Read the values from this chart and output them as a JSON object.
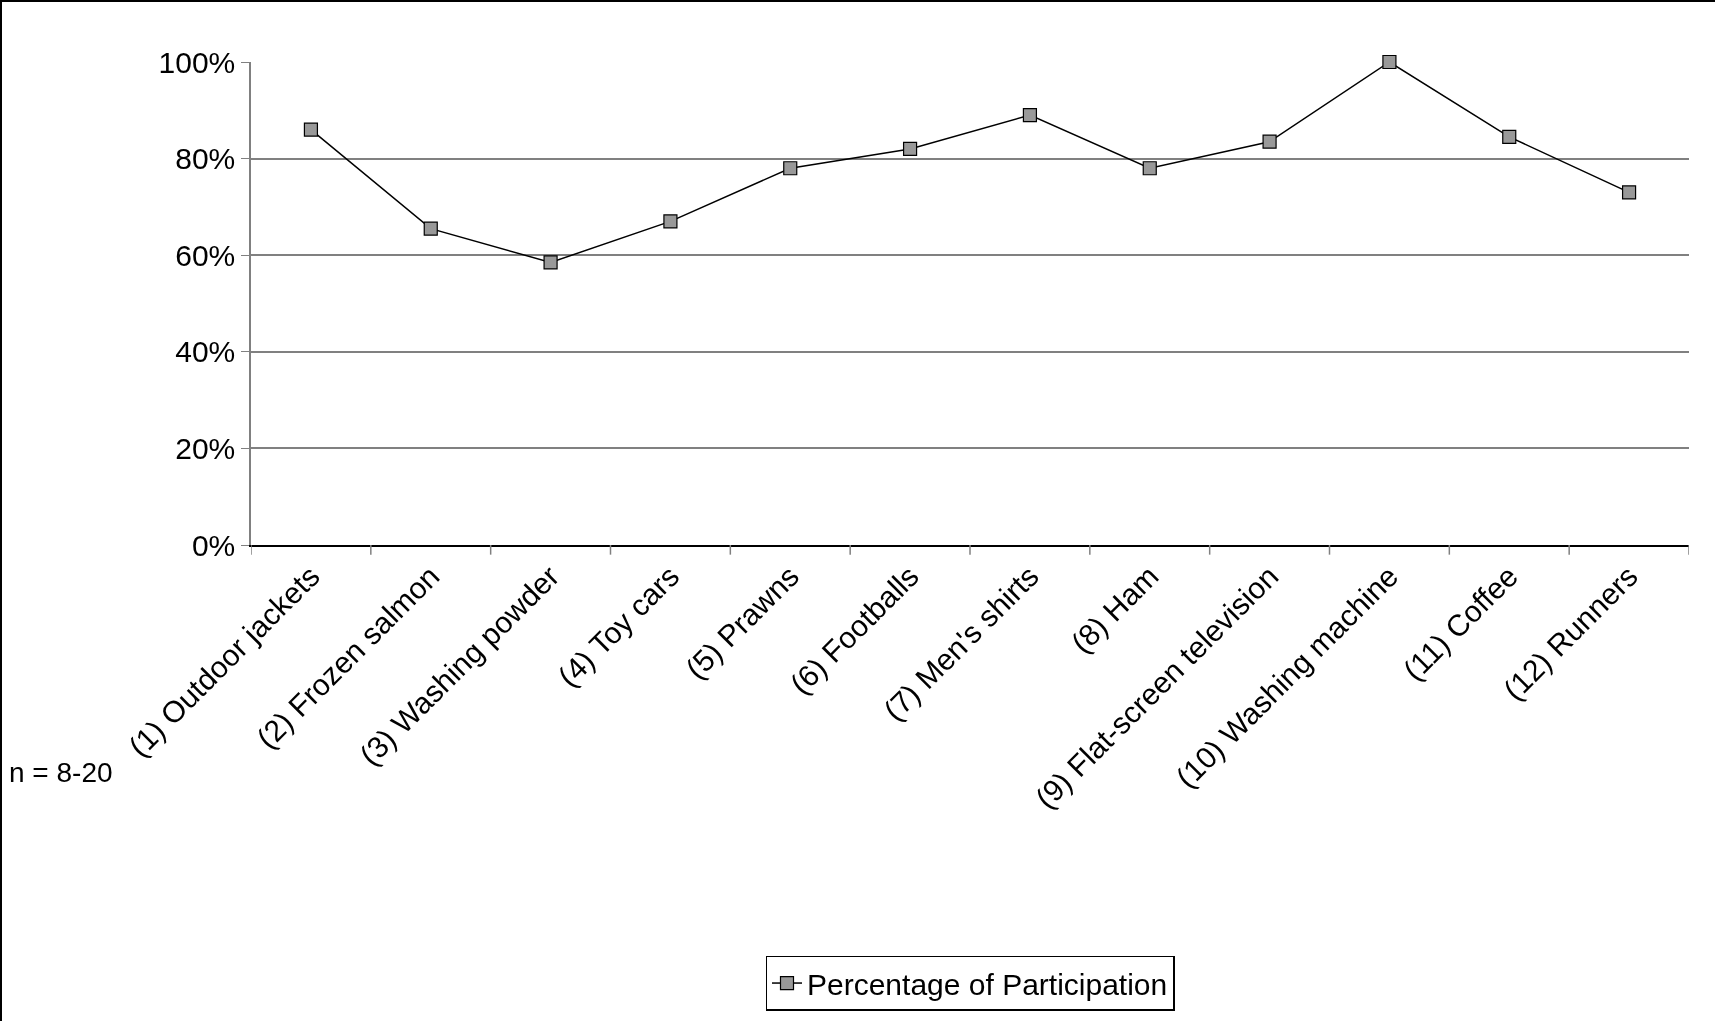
{
  "chart_data": {
    "type": "line",
    "categories": [
      "(1) Outdoor jackets",
      "(2) Frozen salmon",
      "(3) Washing powder",
      "(4) Toy cars",
      "(5) Prawns",
      "(6) Footballs",
      "(7) Men's shirts",
      "(8) Ham",
      "(9) Flat-screen television",
      "(10) Washing machine",
      "(11) Coffee",
      "(12) Runners"
    ],
    "series": [
      {
        "name": "Percentage of Participation",
        "color": "#000000",
        "values": [
          86,
          65.5,
          58.5,
          67,
          78,
          82,
          89,
          78,
          83.5,
          100,
          84.5,
          73
        ]
      }
    ],
    "ylim": [
      0,
      100
    ],
    "yticks": [
      {
        "value": 0,
        "label": "0%"
      },
      {
        "value": 20,
        "label": "20%"
      },
      {
        "value": 40,
        "label": "40%"
      },
      {
        "value": 60,
        "label": "60%"
      },
      {
        "value": 80,
        "label": "80%"
      },
      {
        "value": 100,
        "label": "100%"
      }
    ],
    "grid": "y",
    "legend": "bottom",
    "marker": "square",
    "line_style": "solid",
    "annotations": [
      "n = 8-20"
    ]
  }
}
